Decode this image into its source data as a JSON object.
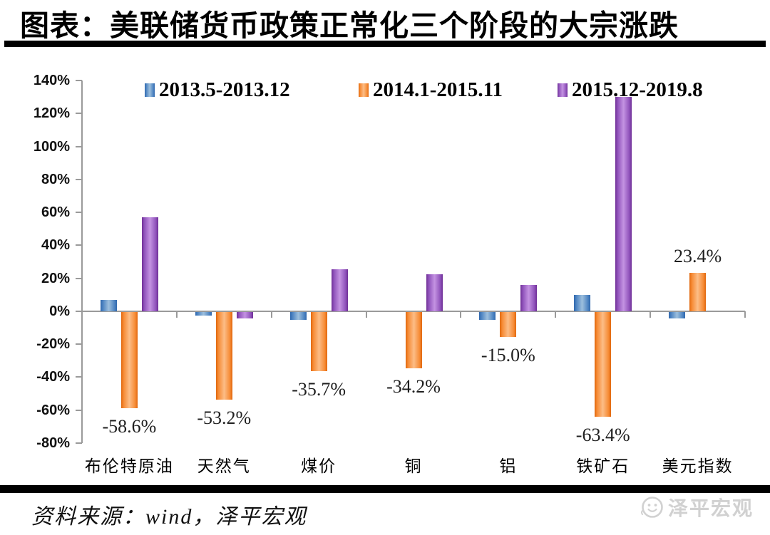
{
  "title": "图表：美联储货币政策正常化三个阶段的大宗涨跌",
  "chart_data": {
    "type": "bar",
    "title": "美联储货币政策正常化三个阶段的大宗涨跌",
    "categories": [
      "布伦特原油",
      "天然气",
      "煤价",
      "铜",
      "铝",
      "铁矿石",
      "美元指数"
    ],
    "series": [
      {
        "name": "2013.5-2013.12",
        "color": "#4f81bd",
        "values": [
          7,
          -2,
          -5,
          0,
          -5,
          10,
          -4
        ]
      },
      {
        "name": "2014.1-2015.11",
        "color": "#f79646",
        "values": [
          -58.6,
          -53.2,
          -35.7,
          -34.2,
          -15,
          -63.4,
          23.4
        ],
        "data_labels": [
          "-58.6%",
          "-53.2%",
          "-35.7%",
          "-34.2%",
          "-15.0%",
          "-63.4%",
          "23.4%"
        ]
      },
      {
        "name": "2015.12-2019.8",
        "color": "#9458c1",
        "values": [
          57,
          -4,
          25.5,
          22.5,
          16,
          130,
          0
        ]
      }
    ],
    "ylim": [
      -80,
      140
    ],
    "ytick_step": 20,
    "ytick_format": "percent",
    "grid": false,
    "legend_position": "top",
    "xlabel": "",
    "ylabel": ""
  },
  "footer": {
    "source": "资料来源：wind，泽平宏观",
    "watermark": "泽平宏观"
  }
}
